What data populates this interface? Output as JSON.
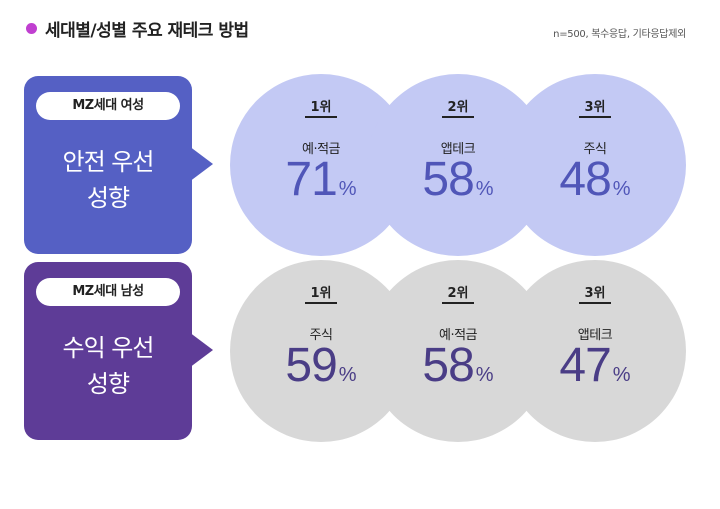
{
  "title": "세대별/성별 주요 재테크 방법",
  "note": "n=500, 복수응답, 기타응답제외",
  "colors": {
    "women_box": "#5560c4",
    "men_box": "#5e3c97",
    "women_circle": "#c3c9f4",
    "men_circle": "#d8d8d8",
    "title_dot": "#c03fd0"
  },
  "chart_data": [
    {
      "type": "table",
      "group": "MZ세대 여성",
      "tendency": [
        "안전 우선",
        "성향"
      ],
      "ranks": [
        {
          "rank": "1위",
          "item": "예·적금",
          "value": 71,
          "unit": "%"
        },
        {
          "rank": "2위",
          "item": "앱테크",
          "value": 58,
          "unit": "%"
        },
        {
          "rank": "3위",
          "item": "주식",
          "value": 48,
          "unit": "%"
        }
      ]
    },
    {
      "type": "table",
      "group": "MZ세대 남성",
      "tendency": [
        "수익 우선",
        "성향"
      ],
      "ranks": [
        {
          "rank": "1위",
          "item": "주식",
          "value": 59,
          "unit": "%"
        },
        {
          "rank": "2위",
          "item": "예·적금",
          "value": 58,
          "unit": "%"
        },
        {
          "rank": "3위",
          "item": "앱테크",
          "value": 47,
          "unit": "%"
        }
      ]
    }
  ]
}
